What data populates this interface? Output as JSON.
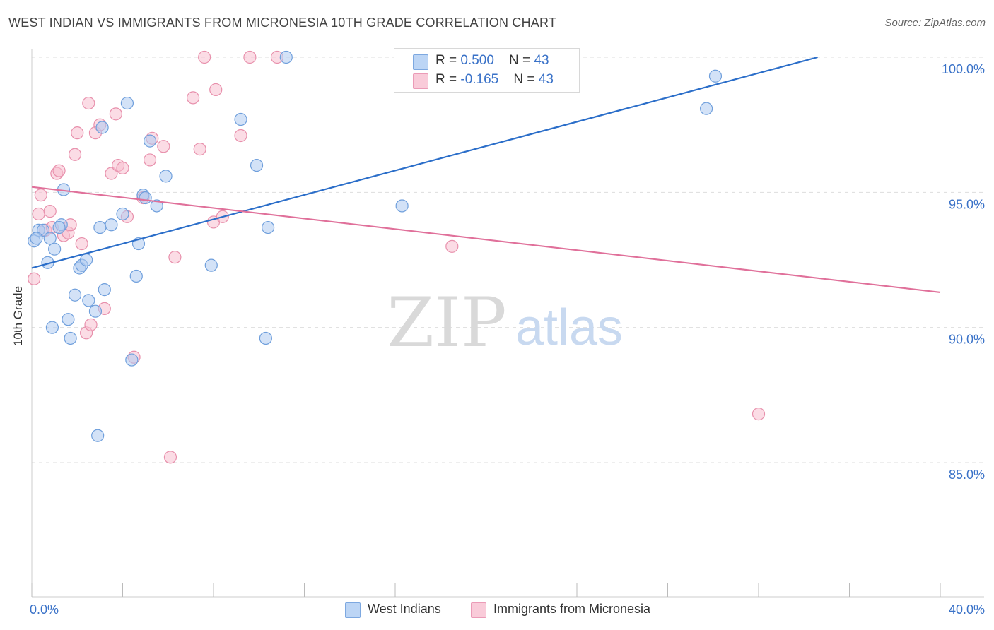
{
  "title": "WEST INDIAN VS IMMIGRANTS FROM MICRONESIA 10TH GRADE CORRELATION CHART",
  "source": "Source: ZipAtlas.com",
  "watermark": {
    "zip": "ZIP",
    "atlas": "atlas"
  },
  "legend": {
    "row1": {
      "r_label": "R = ",
      "r_value": "0.500",
      "n_label": "N = ",
      "n_value": "43"
    },
    "row2": {
      "r_label": "R = ",
      "r_value": "-0.165",
      "n_label": "N = ",
      "n_value": "43"
    }
  },
  "colors": {
    "blue_fill": "#aecbf0",
    "blue_stroke": "#6f9fdc",
    "blue_line": "#2b6ec9",
    "pink_fill": "#f7c0d0",
    "pink_stroke": "#e890ac",
    "pink_line": "#e0709a",
    "tick_label": "#3a72c8",
    "grid": "#dddddd"
  },
  "chart_data": {
    "type": "scatter",
    "title": "WEST INDIAN VS IMMIGRANTS FROM MICRONESIA 10TH GRADE CORRELATION CHART",
    "xlabel": "",
    "ylabel": "10th Grade",
    "xlim": [
      0,
      40
    ],
    "ylim": [
      80.5,
      100.7
    ],
    "x_tick_labels": [
      "0.0%",
      "40.0%"
    ],
    "y_ticks": [
      {
        "value": 100,
        "label": "100.0%"
      },
      {
        "value": 95,
        "label": "95.0%"
      },
      {
        "value": 90,
        "label": "90.0%"
      },
      {
        "value": 85,
        "label": "85.0%"
      }
    ],
    "series": [
      {
        "name": "West Indians",
        "color": "blue",
        "r": 0.5,
        "n": 43,
        "trend": {
          "x0": 0.0,
          "y0": 92.2,
          "x1": 34.6,
          "y1": 100.0
        },
        "points": [
          [
            0.1,
            93.2
          ],
          [
            0.3,
            93.6
          ],
          [
            0.5,
            93.6
          ],
          [
            0.7,
            92.4
          ],
          [
            0.8,
            93.3
          ],
          [
            0.9,
            90.0
          ],
          [
            1.0,
            92.9
          ],
          [
            1.3,
            93.8
          ],
          [
            1.4,
            95.1
          ],
          [
            1.6,
            90.3
          ],
          [
            1.7,
            89.6
          ],
          [
            1.9,
            91.2
          ],
          [
            2.1,
            92.2
          ],
          [
            2.2,
            92.3
          ],
          [
            2.4,
            92.5
          ],
          [
            2.5,
            91.0
          ],
          [
            2.8,
            90.6
          ],
          [
            2.9,
            86.0
          ],
          [
            3.0,
            93.7
          ],
          [
            3.1,
            97.4
          ],
          [
            3.2,
            91.4
          ],
          [
            3.5,
            93.8
          ],
          [
            4.0,
            94.2
          ],
          [
            4.2,
            98.3
          ],
          [
            4.4,
            88.8
          ],
          [
            4.6,
            91.9
          ],
          [
            4.7,
            93.1
          ],
          [
            4.9,
            94.9
          ],
          [
            5.2,
            96.9
          ],
          [
            5.5,
            94.5
          ],
          [
            5.9,
            95.6
          ],
          [
            7.9,
            92.3
          ],
          [
            9.2,
            97.7
          ],
          [
            9.9,
            96.0
          ],
          [
            10.3,
            89.6
          ],
          [
            10.4,
            93.7
          ],
          [
            11.2,
            100.0
          ],
          [
            16.3,
            94.5
          ],
          [
            29.7,
            98.1
          ],
          [
            30.1,
            99.3
          ],
          [
            0.2,
            93.3
          ],
          [
            1.2,
            93.7
          ],
          [
            5.0,
            94.8
          ]
        ]
      },
      {
        "name": "Immigrants from Micronesia",
        "color": "pink",
        "r": -0.165,
        "n": 43,
        "trend": {
          "x0": 0.0,
          "y0": 95.2,
          "x1": 40.0,
          "y1": 91.3
        },
        "points": [
          [
            0.1,
            91.8
          ],
          [
            0.3,
            94.2
          ],
          [
            0.4,
            94.9
          ],
          [
            0.6,
            93.6
          ],
          [
            0.8,
            94.3
          ],
          [
            0.9,
            93.7
          ],
          [
            1.1,
            95.7
          ],
          [
            1.2,
            95.8
          ],
          [
            1.4,
            93.4
          ],
          [
            1.6,
            93.5
          ],
          [
            1.7,
            93.8
          ],
          [
            1.9,
            96.4
          ],
          [
            2.0,
            97.2
          ],
          [
            2.2,
            93.1
          ],
          [
            2.4,
            89.8
          ],
          [
            2.5,
            98.3
          ],
          [
            2.6,
            90.1
          ],
          [
            2.8,
            97.2
          ],
          [
            3.0,
            97.5
          ],
          [
            3.2,
            90.7
          ],
          [
            3.5,
            95.7
          ],
          [
            3.7,
            97.9
          ],
          [
            3.8,
            96.0
          ],
          [
            4.0,
            95.9
          ],
          [
            4.2,
            94.1
          ],
          [
            4.5,
            88.9
          ],
          [
            4.9,
            94.8
          ],
          [
            5.2,
            96.2
          ],
          [
            5.3,
            97.0
          ],
          [
            5.8,
            96.7
          ],
          [
            6.1,
            85.2
          ],
          [
            6.3,
            92.6
          ],
          [
            7.1,
            98.5
          ],
          [
            7.4,
            96.6
          ],
          [
            7.6,
            100.0
          ],
          [
            8.0,
            93.9
          ],
          [
            8.1,
            98.8
          ],
          [
            8.4,
            94.1
          ],
          [
            9.2,
            97.1
          ],
          [
            9.6,
            100.0
          ],
          [
            10.8,
            100.0
          ],
          [
            18.5,
            93.0
          ],
          [
            32.0,
            86.8
          ]
        ]
      }
    ]
  },
  "bottom_legend": [
    "West Indians",
    "Immigrants from Micronesia"
  ]
}
